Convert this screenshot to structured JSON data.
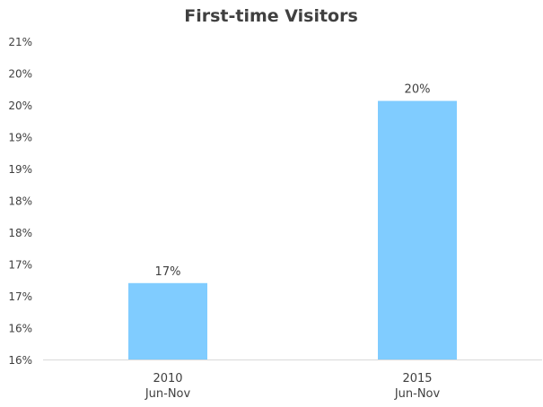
{
  "chart_data": {
    "type": "bar",
    "title": "First-time Visitors",
    "xlabel": "",
    "ylabel": "",
    "categories": [
      [
        "2010",
        "Jun-Nov"
      ],
      [
        "2015",
        "Jun-Nov"
      ]
    ],
    "values": [
      16.8,
      19.9
    ],
    "data_labels": [
      "17%",
      "20%"
    ],
    "ylim": [
      15.5,
      20.9
    ],
    "yticks": [
      15.5,
      16.0,
      16.5,
      17.0,
      17.5,
      18.0,
      18.5,
      19.0,
      19.5,
      20.0,
      20.5,
      21.0
    ],
    "ytick_labels": [
      "16%",
      "16%",
      "17%",
      "17%",
      "18%",
      "18%",
      "19%",
      "19%",
      "20%",
      "20%",
      "21%"
    ],
    "grid": false,
    "bar_color": "#80CCFF",
    "axis_color": "#D9D9D9",
    "text_color": "#404040"
  }
}
